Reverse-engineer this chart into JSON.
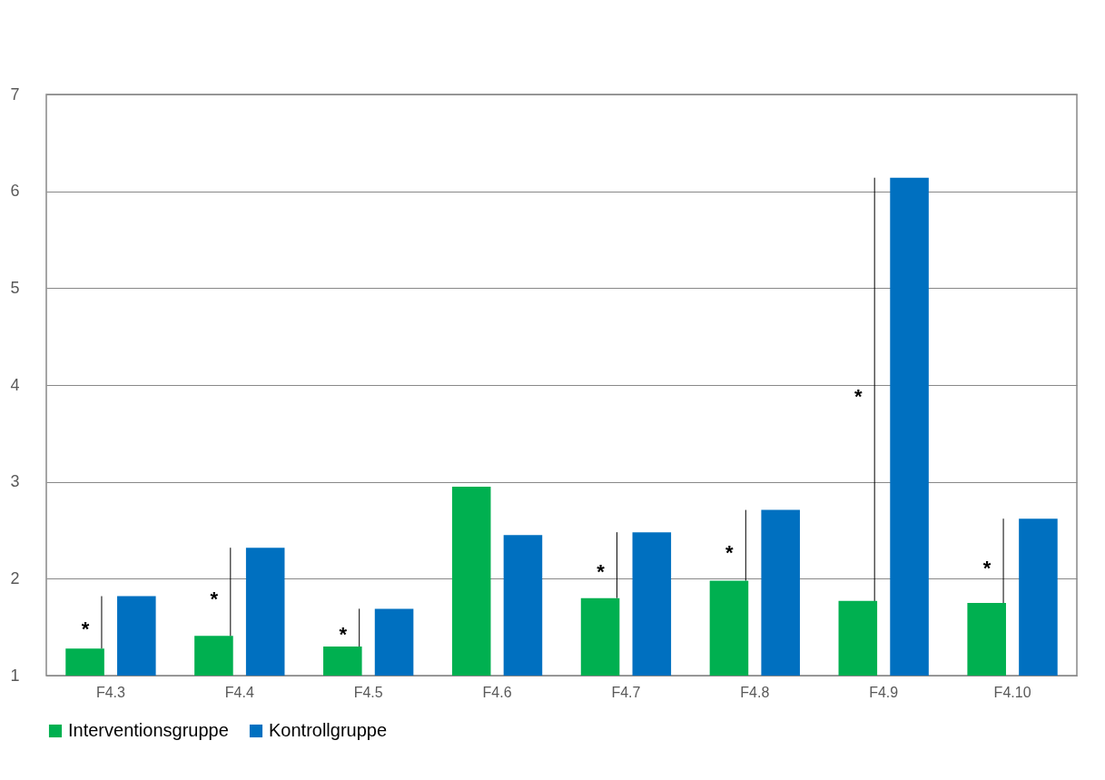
{
  "chart_data": {
    "type": "bar",
    "categories": [
      "F4.3",
      "F4.4",
      "F4.5",
      "F4.6",
      "F4.7",
      "F4.8",
      "F4.9",
      "F4.10"
    ],
    "series": [
      {
        "name": "Interventionsgruppe",
        "color": "#00b050",
        "values": [
          1.28,
          1.41,
          1.3,
          2.95,
          1.8,
          1.98,
          1.77,
          1.75
        ]
      },
      {
        "name": "Kontrollgruppe",
        "color": "#0070c0",
        "values": [
          1.82,
          2.32,
          1.69,
          2.45,
          2.48,
          2.71,
          6.14,
          2.62
        ]
      }
    ],
    "ylim": [
      1,
      7
    ],
    "yticks": [
      1,
      2,
      3,
      4,
      5,
      6,
      7
    ],
    "grid": "y",
    "legend": "bottom",
    "annotations": [
      "*",
      "*",
      "*",
      "*",
      "*",
      "*",
      "*"
    ]
  }
}
